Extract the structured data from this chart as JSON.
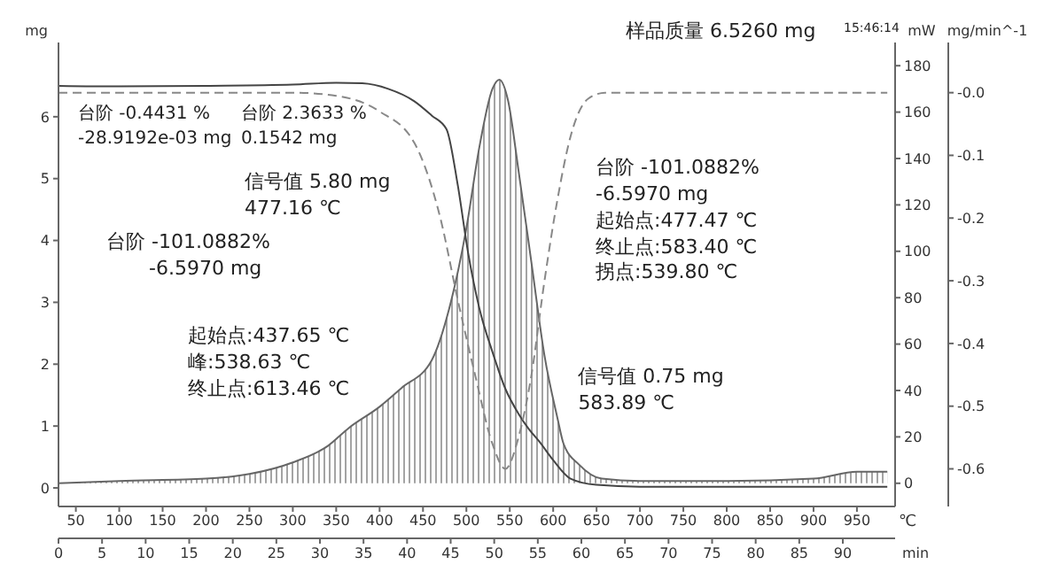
{
  "chart_data": {
    "type": "line",
    "title": "样品质量 6.5260 mg",
    "xlabel": "℃",
    "x2label": "min",
    "ylabel": "mg",
    "y2label": "mW",
    "y3label": "mg/min^-1",
    "xlim": [
      30,
      994
    ],
    "xticks": [
      50,
      100,
      150,
      200,
      250,
      300,
      350,
      400,
      450,
      500,
      550,
      600,
      650,
      700,
      750,
      800,
      850,
      900,
      950
    ],
    "x2lim": [
      0,
      96
    ],
    "x2ticks": [
      0,
      5,
      10,
      15,
      20,
      25,
      30,
      35,
      40,
      45,
      50,
      55,
      60,
      65,
      70,
      75,
      80,
      85,
      90
    ],
    "ylim": [
      -0.3,
      7.2
    ],
    "yticks": [
      0,
      1,
      2,
      3,
      4,
      5,
      6
    ],
    "y2lim": [
      -10,
      190
    ],
    "y2ticks": [
      0,
      20,
      40,
      60,
      80,
      100,
      120,
      140,
      160,
      180
    ],
    "y3lim": [
      -0.66,
      0.08
    ],
    "y3ticks": [
      {
        "value": 0,
        "label": "-0.0"
      },
      -0.1,
      -0.2,
      -0.3,
      -0.4,
      -0.5,
      -0.6
    ],
    "grid": false,
    "legend": false,
    "series": [
      {
        "type": "area",
        "axis": "y2",
        "color": "#666666",
        "line_style": "solid",
        "x": [
          30,
          100,
          200,
          250,
          300,
          340,
          365,
          400,
          425,
          460,
          480,
          500,
          515,
          530,
          538,
          548,
          560,
          575,
          590,
          605,
          612,
          630,
          656,
          700,
          800,
          900,
          950,
          985
        ],
        "values": [
          0,
          1,
          2,
          4,
          9,
          16,
          24,
          33,
          41,
          53,
          75,
          110,
          145,
          170,
          174,
          165,
          135,
          95,
          55,
          28,
          17,
          8,
          2,
          1,
          1,
          2,
          5,
          5
        ]
      },
      {
        "type": "line",
        "axis": "y",
        "color": "#444444",
        "line_style": "solid",
        "x": [
          30,
          100,
          200,
          300,
          350,
          380,
          410,
          440,
          460,
          477,
          490,
          502,
          515,
          530,
          545,
          560,
          572,
          584,
          600,
          620,
          650,
          700,
          985
        ],
        "values": [
          6.5,
          6.49,
          6.5,
          6.52,
          6.55,
          6.54,
          6.45,
          6.25,
          6.02,
          5.8,
          4.9,
          3.8,
          2.9,
          2.2,
          1.6,
          1.2,
          0.95,
          0.75,
          0.45,
          0.15,
          0.05,
          0.02,
          0.02
        ]
      },
      {
        "type": "line",
        "axis": "y3",
        "color": "#888888",
        "line_style": "dashed",
        "x": [
          30,
          300,
          350,
          400,
          440,
          470,
          490,
          510,
          530,
          545,
          560,
          575,
          590,
          605,
          620,
          640,
          660,
          985
        ],
        "values": [
          0,
          0,
          -0.005,
          -0.03,
          -0.08,
          -0.2,
          -0.33,
          -0.45,
          -0.56,
          -0.6,
          -0.55,
          -0.45,
          -0.3,
          -0.17,
          -0.07,
          -0.01,
          0,
          0
        ]
      }
    ],
    "annotations": [
      "台阶 -0.4431 %\n-28.9192e-03 mg",
      "台阶 2.3633 %\n0.1542 mg",
      "信号值 5.80 mg\n477.16 ℃",
      "台阶 -101.0882%\n-6.5970 mg",
      "台阶 -101.0882%\n-6.5970 mg\n起始点:477.47 ℃\n终止点:583.40 ℃\n拐点:539.80 ℃",
      "起始点:437.65 ℃\n峰:538.63 ℃\n终止点:613.46 ℃",
      {
        "text": "信号值 0.75 mg\n583.89 ℃",
        "x": 583.89,
        "y": 0.75
      },
      "15:46:14"
    ]
  }
}
